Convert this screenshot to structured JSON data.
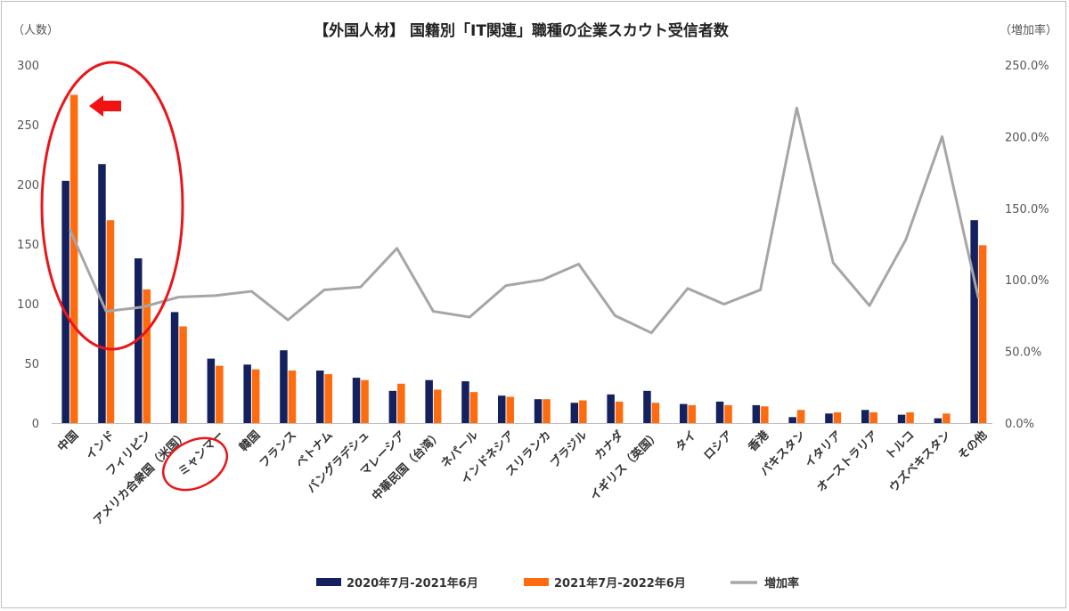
{
  "chart_data": {
    "type": "bar",
    "title": "【外国人材】 国籍別「IT関連」職種の企業スカウト受信者数",
    "ylabel_left": "（人数）",
    "ylabel_right": "（増加率）",
    "ylim_left": [
      0,
      300
    ],
    "ylim_right": [
      0,
      2.5
    ],
    "yticks_left": [
      "0",
      "50",
      "100",
      "150",
      "200",
      "250",
      "300"
    ],
    "yticks_right": [
      "0.0%",
      "50.0%",
      "100.0%",
      "150.0%",
      "200.0%",
      "250.0%"
    ],
    "categories": [
      "中国",
      "インド",
      "フィリピン",
      "アメリカ合衆国（米国）",
      "ミャンマー",
      "韓国",
      "フランス",
      "ベトナム",
      "バングラデシュ",
      "マレーシア",
      "中華民国（台湾）",
      "ネパール",
      "インドネシア",
      "スリランカ",
      "ブラジル",
      "カナダ",
      "イギリス（英国）",
      "タイ",
      "ロシア",
      "香港",
      "パキスタン",
      "イタリア",
      "オーストラリア",
      "トルコ",
      "ウズベキスタン",
      "その他"
    ],
    "series": [
      {
        "name": "2020年7月-2021年6月",
        "color": "#14215e",
        "axis": "left",
        "values": [
          203,
          217,
          138,
          93,
          54,
          49,
          61,
          44,
          38,
          27,
          36,
          35,
          23,
          20,
          17,
          24,
          27,
          16,
          18,
          15,
          5,
          8,
          11,
          7,
          4,
          170
        ]
      },
      {
        "name": "2021年7月-2022年6月",
        "color": "#ff6b0f",
        "axis": "left",
        "values": [
          275,
          170,
          112,
          81,
          48,
          45,
          44,
          41,
          36,
          33,
          28,
          26,
          22,
          20,
          19,
          18,
          17,
          15,
          15,
          14,
          11,
          9,
          9,
          9,
          8,
          149
        ]
      },
      {
        "name": "増加率",
        "color": "#a6a6a6",
        "axis": "right",
        "type": "line",
        "values": [
          1.35,
          0.78,
          0.81,
          0.88,
          0.89,
          0.92,
          0.72,
          0.93,
          0.95,
          1.22,
          0.78,
          0.74,
          0.96,
          1.0,
          1.11,
          0.75,
          0.63,
          0.94,
          0.83,
          0.93,
          2.2,
          1.12,
          0.82,
          1.28,
          2.0,
          0.87
        ]
      }
    ],
    "legend_position": "bottom",
    "grid": false,
    "annotations": [
      "red ellipse around 中国・インド・フィリピン",
      "red arrow pointing left at 中国",
      "red ellipse around ミャンマー label"
    ]
  }
}
